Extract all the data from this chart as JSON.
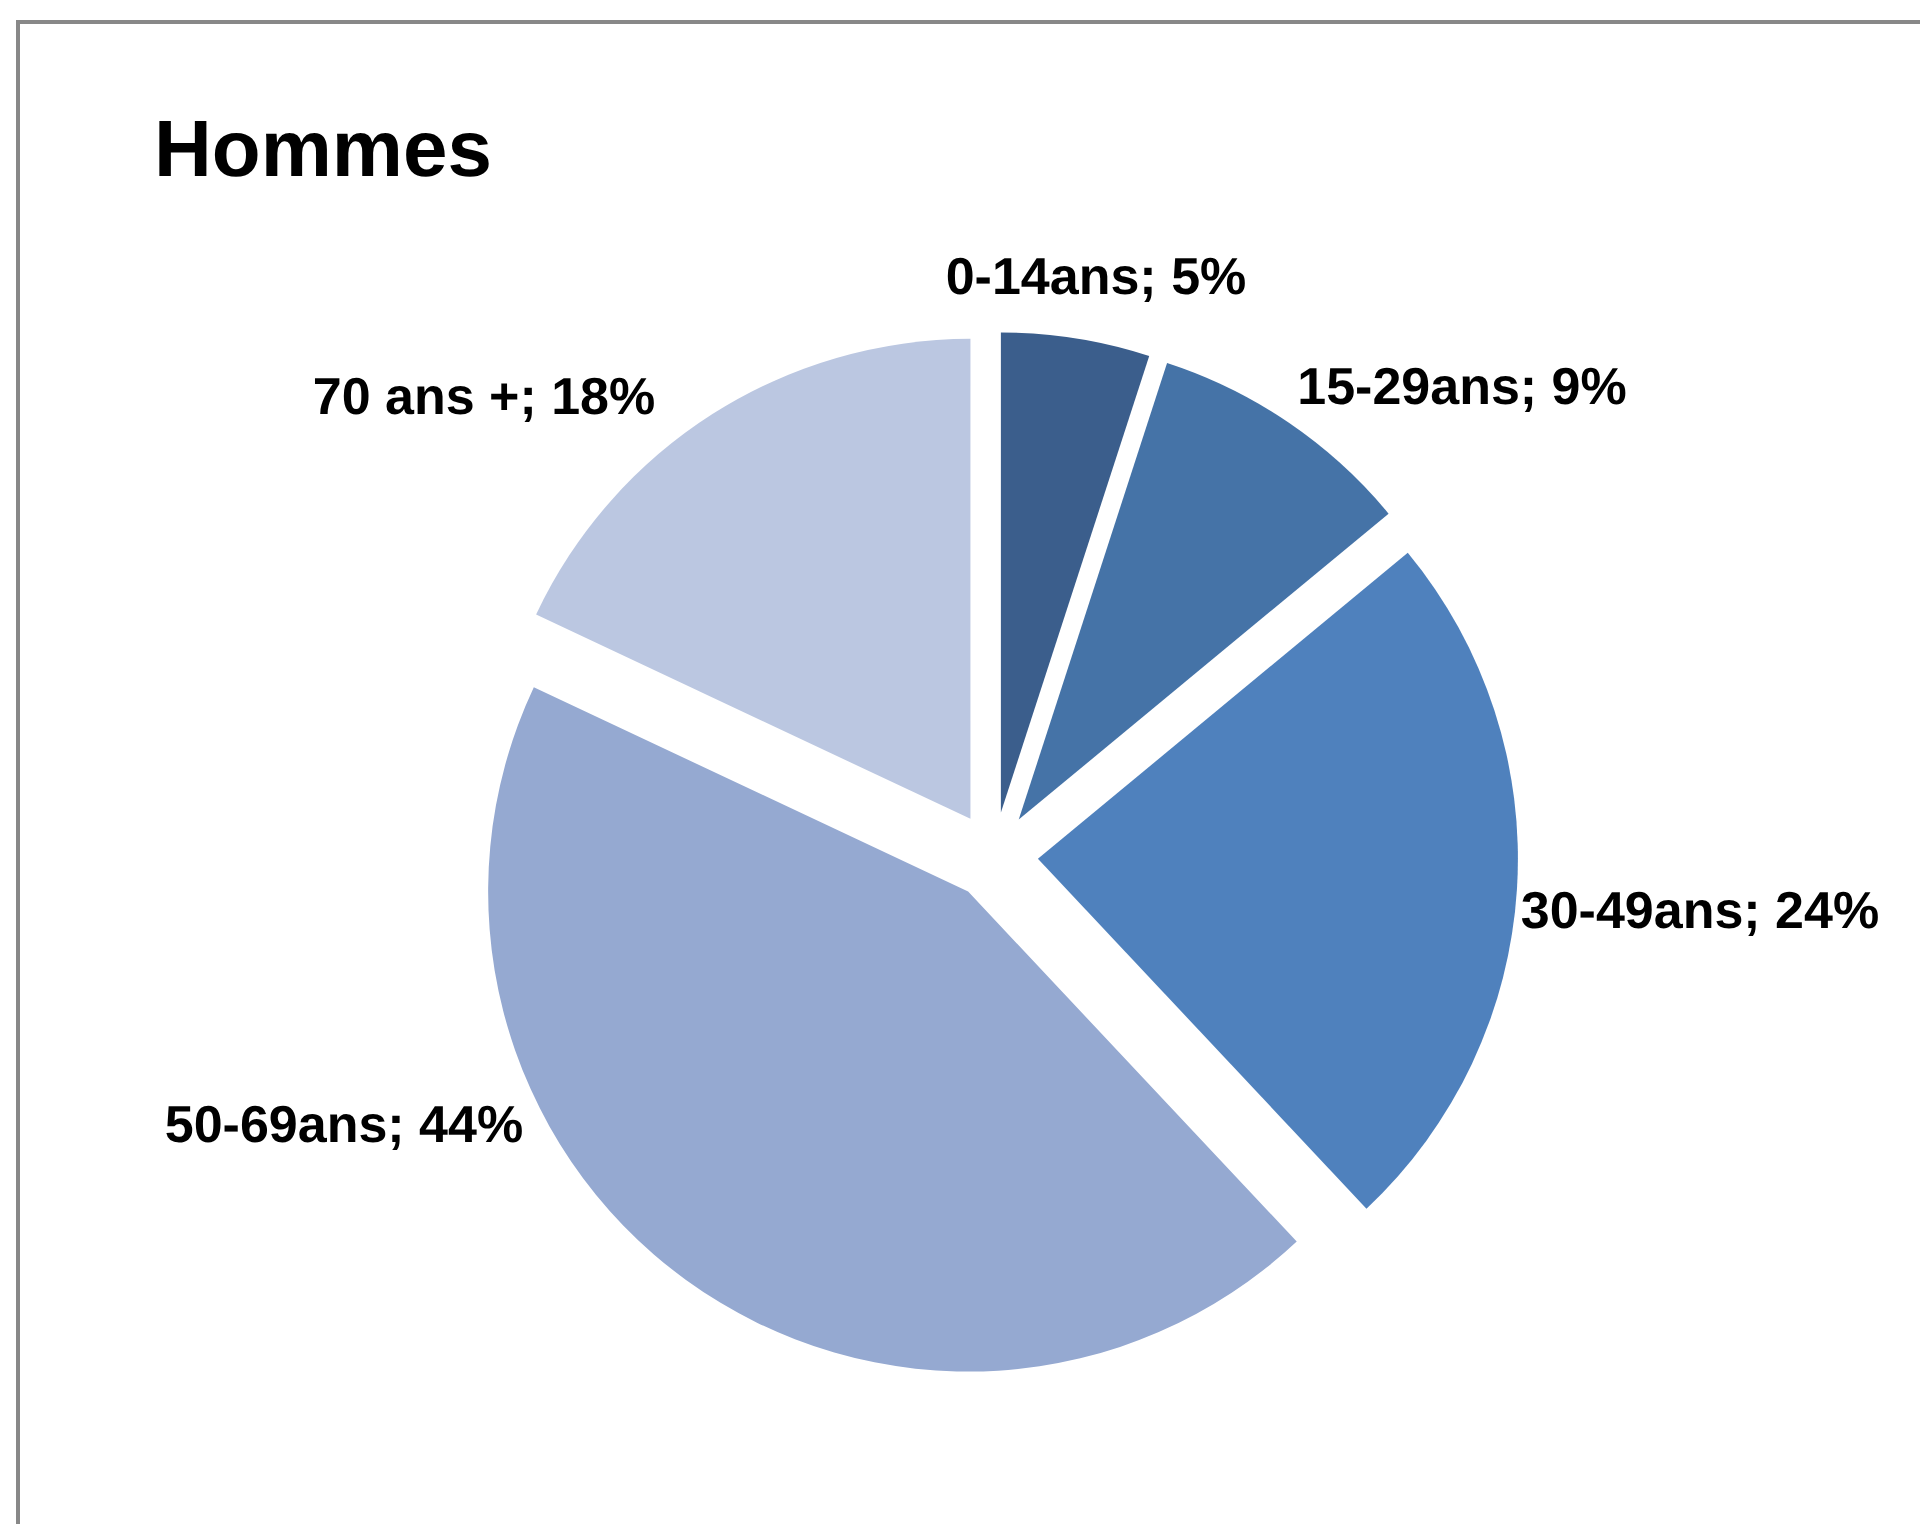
{
  "chart_data": {
    "type": "pie",
    "title": "Hommes",
    "categories": [
      "0-14ans",
      "15-29ans",
      "30-49ans",
      "50-69ans",
      "70 ans +"
    ],
    "values": [
      5,
      9,
      24,
      44,
      18
    ],
    "colors": [
      "#3b5e8c",
      "#4573a7",
      "#4f81bd",
      "#95a9d1",
      "#bbc7e1"
    ],
    "value_labels": [
      "5%",
      "9%",
      "24%",
      "44%",
      "18%"
    ]
  }
}
